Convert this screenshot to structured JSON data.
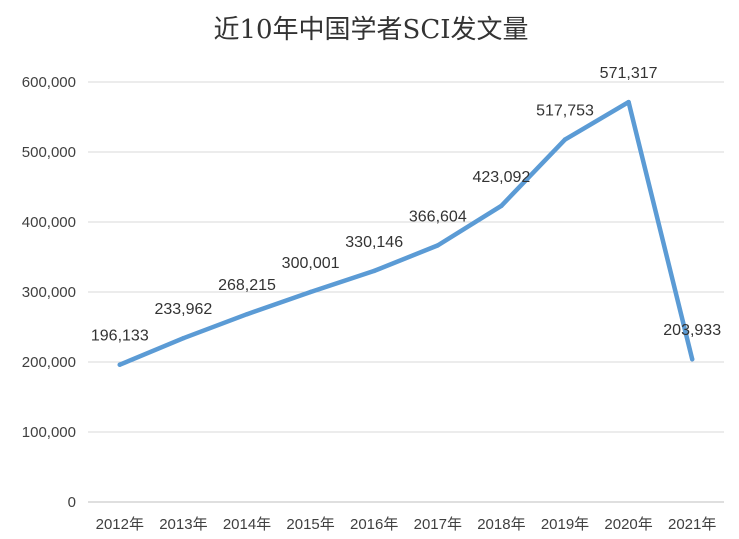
{
  "chart_data": {
    "type": "line",
    "title": "近10年中国学者SCI发文量",
    "xlabel": "",
    "ylabel": "",
    "categories": [
      "2012年",
      "2013年",
      "2014年",
      "2015年",
      "2016年",
      "2017年",
      "2018年",
      "2019年",
      "2020年",
      "2021年"
    ],
    "series": [
      {
        "values": [
          196133,
          233962,
          268215,
          300001,
          330146,
          366604,
          423092,
          517753,
          571317,
          203933
        ],
        "labels": [
          "196,133",
          "233,962",
          "268,215",
          "300,001",
          "330,146",
          "366,604",
          "423,092",
          "517,753",
          "571,317",
          "203,933"
        ],
        "color": "#5b9bd5"
      }
    ],
    "ylim": [
      0,
      600000
    ],
    "yticks": [
      "0",
      "100,000",
      "200,000",
      "300,000",
      "400,000",
      "500,000",
      "600,000"
    ],
    "grid": true,
    "legend": "none"
  }
}
